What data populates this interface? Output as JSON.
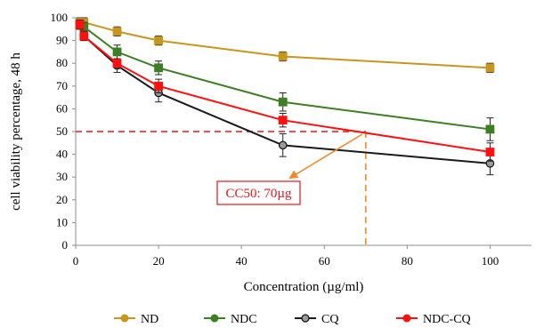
{
  "chart_data": {
    "type": "line",
    "xlabel": "Concentration (µg/ml)",
    "ylabel": "cell viability percentage, 48 h",
    "xlim": [
      0,
      110
    ],
    "ylim": [
      0,
      100
    ],
    "x_ticks": [
      "0",
      "20",
      "40",
      "60",
      "80",
      "100"
    ],
    "y_ticks": [
      "0",
      "10",
      "20",
      "30",
      "40",
      "50",
      "60",
      "70",
      "80",
      "90",
      "100"
    ],
    "grid": false,
    "legend_position": "bottom",
    "x": [
      1,
      2,
      10,
      20,
      50,
      100
    ],
    "series": [
      {
        "name": "ND",
        "color": "#c8961e",
        "values": [
          98,
          98,
          94,
          90,
          83,
          78
        ],
        "errors": [
          2,
          2,
          2,
          2,
          2,
          2
        ]
      },
      {
        "name": "NDC",
        "color": "#3d7f23",
        "values": [
          97,
          96,
          85,
          78,
          63,
          51
        ],
        "errors": [
          2,
          2,
          3,
          3,
          4,
          5
        ]
      },
      {
        "name": "CQ",
        "color": "#1a1a1a",
        "values": [
          97,
          92,
          79,
          67,
          44,
          36
        ],
        "errors": [
          2,
          2,
          3,
          4,
          5,
          5
        ]
      },
      {
        "name": "NDC-CQ",
        "color": "#ff1010",
        "values": [
          97,
          92,
          80,
          70,
          55,
          41
        ],
        "errors": [
          2,
          2,
          2,
          3,
          3,
          4
        ]
      }
    ],
    "annotation": {
      "label": "CC50: 70µg",
      "x": 70,
      "y": 50,
      "line_color_h": "#e8141c",
      "line_color_v": "#f08a28",
      "arrow_color": "#f08a28"
    }
  }
}
